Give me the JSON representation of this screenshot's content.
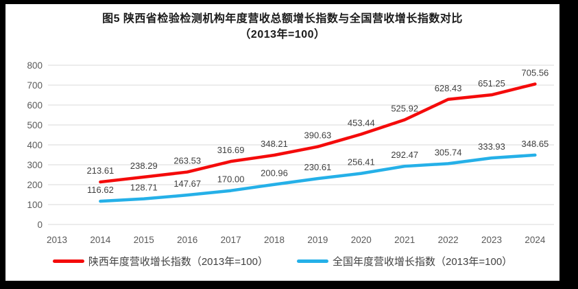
{
  "figure": {
    "title_line1": "图5  陕西省检验检测机构年度营收总额增长指数与全国营收增长指数对比",
    "title_line2": "（2013年=100）"
  },
  "chart_data": {
    "type": "line",
    "title": "图5  陕西省检验检测机构年度营收总额增长指数与全国营收增长指数对比",
    "subtitle": "（2013年=100）",
    "xlabel": "",
    "ylabel": "",
    "ylim": [
      0,
      800
    ],
    "ytick_step": 100,
    "grid": true,
    "legend_position": "bottom",
    "categories": [
      "2013",
      "2014",
      "2015",
      "2016",
      "2017",
      "2018",
      "2019",
      "2020",
      "2021",
      "2022",
      "2023",
      "2024"
    ],
    "series": [
      {
        "name": "陕西年度营收增长指数（2013年=100）",
        "color": "#f40b0b",
        "values": [
          null,
          213.61,
          238.29,
          263.53,
          316.69,
          348.21,
          390.63,
          453.44,
          525.92,
          628.43,
          651.25,
          705.56
        ],
        "labels": [
          null,
          "213.61",
          "238.29",
          "263.53",
          "316.69",
          "348.21",
          "390.63",
          "453.44",
          "525.92",
          "628.43",
          "651.25",
          "705.56"
        ]
      },
      {
        "name": "全国年度营收增长指数（2013年=100）",
        "color": "#25b0e8",
        "values": [
          null,
          116.62,
          128.71,
          147.67,
          170.0,
          200.96,
          230.61,
          256.41,
          292.47,
          305.74,
          333.93,
          348.65
        ],
        "labels": [
          null,
          "116.62",
          "128.71",
          "147.67",
          "170.00",
          "200.96",
          "230.61",
          "256.41",
          "292.47",
          "305.74",
          "333.93",
          "348.65"
        ]
      }
    ],
    "colors": {
      "gridline": "#d9d9d9",
      "tick_label": "#595959",
      "data_label": "#3f3f3f",
      "title_text": "#1a1a1a"
    }
  }
}
